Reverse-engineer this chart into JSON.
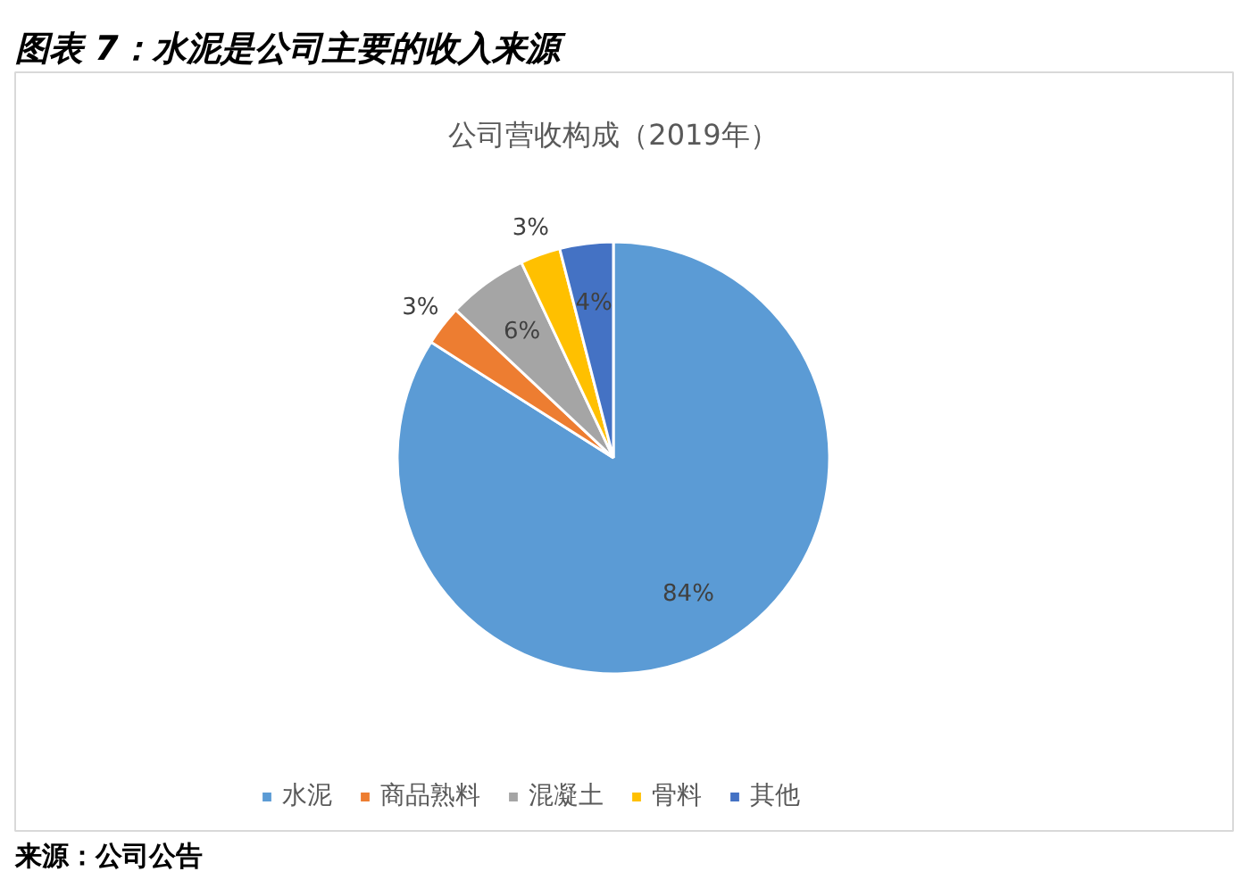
{
  "chart_data": {
    "type": "pie",
    "title": "图表 7：水泥是公司主要的收入来源",
    "subtitle": "公司营收构成（2019年）",
    "categories": [
      "水泥",
      "商品熟料",
      "混凝土",
      "骨料",
      "其他"
    ],
    "values": [
      84,
      3,
      6,
      3,
      4
    ],
    "colors": [
      "#5b9bd5",
      "#ed7d31",
      "#a5a5a5",
      "#ffc000",
      "#4472c4"
    ],
    "value_labels": [
      "84%",
      "3%",
      "6%",
      "3%",
      "4%"
    ],
    "legend": "bottom",
    "annotations": [
      "来源：公司公告"
    ]
  }
}
